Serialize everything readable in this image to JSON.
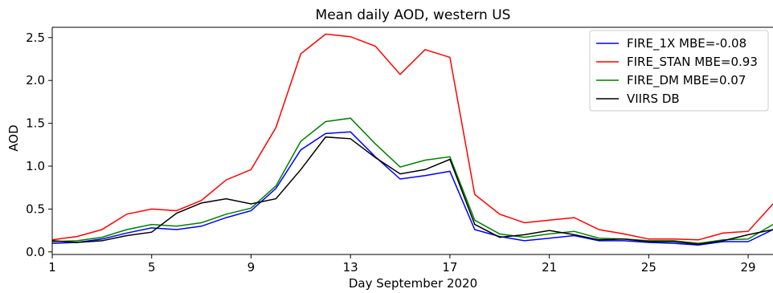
{
  "chart_data": {
    "type": "line",
    "title": "Mean daily AOD, western US",
    "xlabel": "Day September 2020",
    "ylabel": "AOD",
    "xlim": [
      1,
      30
    ],
    "ylim": [
      -0.03,
      2.62
    ],
    "xticks": [
      1,
      5,
      9,
      13,
      17,
      21,
      25,
      29
    ],
    "yticks": [
      0.0,
      0.5,
      1.0,
      1.5,
      2.0,
      2.5
    ],
    "ytick_labels": [
      "0.0",
      "0.5",
      "1.0",
      "1.5",
      "2.0",
      "2.5"
    ],
    "grid": false,
    "legend_position": "top-right",
    "x": [
      1,
      2,
      3,
      4,
      5,
      6,
      7,
      8,
      9,
      10,
      11,
      12,
      13,
      14,
      15,
      16,
      17,
      18,
      19,
      20,
      21,
      22,
      23,
      24,
      25,
      26,
      27,
      28,
      29,
      30
    ],
    "series": [
      {
        "name": "FIRE_1X MBE=-0.08",
        "color": "#0000ff",
        "values": [
          0.1,
          0.11,
          0.15,
          0.22,
          0.28,
          0.26,
          0.3,
          0.4,
          0.48,
          0.74,
          1.19,
          1.38,
          1.4,
          1.11,
          0.85,
          0.89,
          0.94,
          0.26,
          0.18,
          0.13,
          0.16,
          0.19,
          0.13,
          0.13,
          0.11,
          0.1,
          0.08,
          0.12,
          0.12,
          0.26
        ]
      },
      {
        "name": "FIRE_STAN MBE=0.93",
        "color": "#ff0000",
        "values": [
          0.14,
          0.18,
          0.26,
          0.44,
          0.5,
          0.48,
          0.6,
          0.84,
          0.96,
          1.45,
          2.31,
          2.54,
          2.51,
          2.4,
          2.07,
          2.36,
          2.27,
          0.67,
          0.44,
          0.34,
          0.37,
          0.4,
          0.26,
          0.21,
          0.15,
          0.15,
          0.14,
          0.22,
          0.24,
          0.56
        ]
      },
      {
        "name": "FIRE_DM MBE=0.07",
        "color": "#008000",
        "values": [
          0.12,
          0.13,
          0.17,
          0.26,
          0.32,
          0.3,
          0.34,
          0.44,
          0.51,
          0.77,
          1.29,
          1.52,
          1.56,
          1.26,
          0.99,
          1.07,
          1.11,
          0.37,
          0.21,
          0.17,
          0.21,
          0.24,
          0.16,
          0.15,
          0.13,
          0.13,
          0.1,
          0.14,
          0.15,
          0.32
        ]
      },
      {
        "name": "VIIRS DB",
        "color": "#000000",
        "values": [
          0.13,
          0.11,
          0.13,
          0.19,
          0.23,
          0.45,
          0.57,
          0.62,
          0.56,
          0.62,
          0.96,
          1.34,
          1.32,
          1.1,
          0.91,
          0.96,
          1.08,
          0.32,
          0.17,
          0.2,
          0.25,
          0.2,
          0.14,
          0.15,
          0.12,
          0.12,
          0.09,
          0.13,
          0.2,
          0.26
        ]
      }
    ]
  }
}
